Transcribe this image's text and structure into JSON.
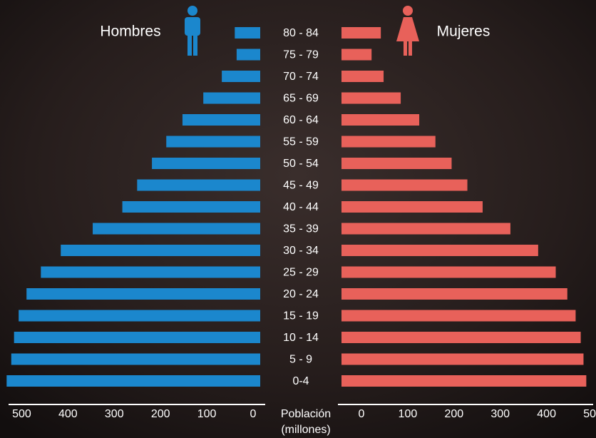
{
  "chart_data": {
    "type": "pyramid",
    "categories": [
      "80 - 84",
      "75 - 79",
      "70 - 74",
      "65 - 69",
      "60 - 64",
      "55 - 59",
      "50 - 54",
      "45 - 49",
      "40 - 44",
      "35 - 39",
      "30 - 34",
      "25 - 29",
      "20 - 24",
      "15 - 19",
      "10 - 14",
      "5 - 9",
      "0-4"
    ],
    "series": [
      {
        "name": "Hombres",
        "color": "#1b87cd",
        "values": [
          55,
          51,
          83,
          123,
          168,
          203,
          234,
          266,
          298,
          362,
          431,
          474,
          505,
          522,
          532,
          538,
          548
        ]
      },
      {
        "name": "Mujeres",
        "color": "#e8615a",
        "values": [
          85,
          65,
          91,
          128,
          168,
          203,
          238,
          272,
          305,
          365,
          425,
          463,
          488,
          506,
          517,
          523,
          529
        ]
      }
    ],
    "xlabel": [
      "Población",
      "(millones)"
    ],
    "xlim": [
      0,
      550
    ],
    "xticks": [
      0,
      100,
      200,
      300,
      400,
      500
    ]
  }
}
